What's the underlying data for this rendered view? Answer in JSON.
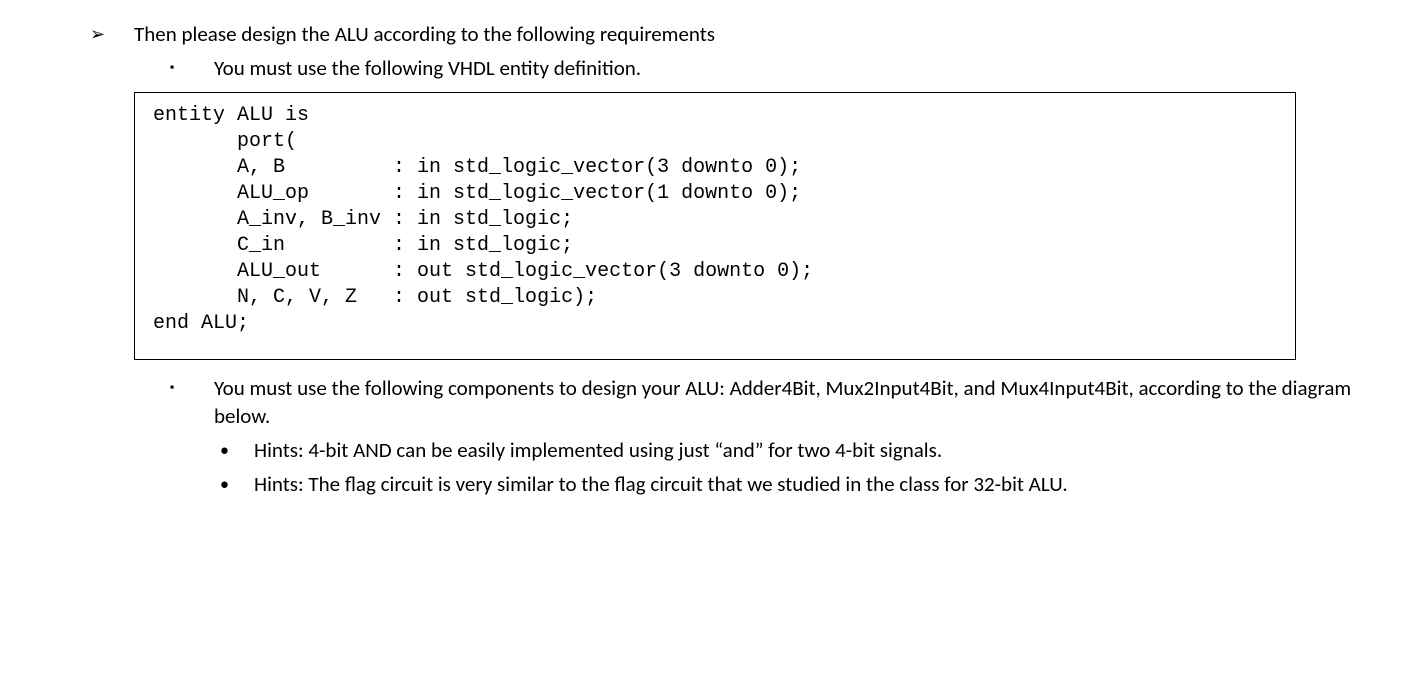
{
  "line1": "Then please design the ALU according to the following requirements",
  "line2": "You must use the following VHDL entity definition.",
  "code": "entity ALU is\n       port(\n       A, B         : in std_logic_vector(3 downto 0);\n       ALU_op       : in std_logic_vector(1 downto 0);\n       A_inv, B_inv : in std_logic;\n       C_in         : in std_logic;\n       ALU_out      : out std_logic_vector(3 downto 0);\n       N, C, V, Z   : out std_logic);\nend ALU;",
  "line3": "You must use the following components to design your ALU: Adder4Bit, Mux2Input4Bit, and Mux4Input4Bit, according to the diagram below.",
  "hint1": "Hints: 4-bit AND can be easily implemented using just “and” for two 4-bit signals.",
  "hint2": "Hints: The flag circuit is very similar to the flag circuit that we studied in the class for 32-bit ALU.",
  "bullets": {
    "arrow": "➢",
    "square": "▪",
    "dot": "•"
  }
}
